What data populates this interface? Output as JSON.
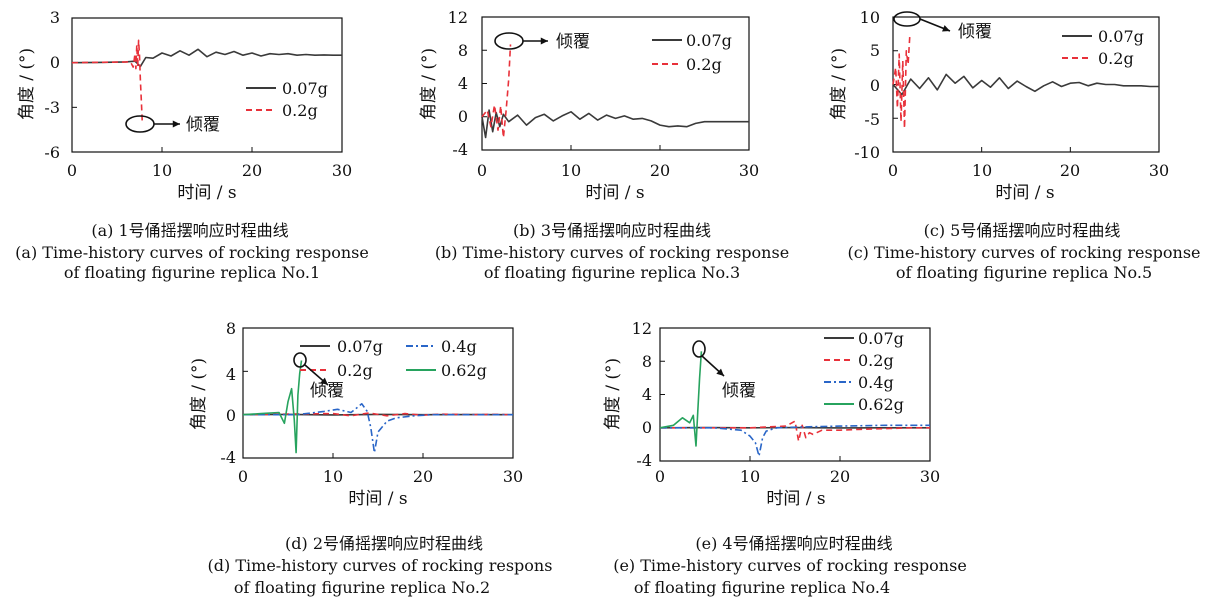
{
  "colors": {
    "0.07g": "#3a3a3a",
    "0.2g": "#e8313a",
    "0.4g": "#2a66c8",
    "0.62g": "#27a35e"
  },
  "chart_data": [
    {
      "type": "line",
      "panel": "a",
      "xlabel": "时间 / s",
      "ylabel": "角度 / (°)",
      "xlim": [
        0,
        30
      ],
      "ylim": [
        -6,
        3
      ],
      "xticks": [
        0,
        10,
        20,
        30
      ],
      "yticks": [
        -6,
        -3,
        0,
        3
      ],
      "caption_zh": "(a) 1号俑摇摆响应时程曲线",
      "caption_en_1": "(a) Time-history curves of rocking response",
      "caption_en_2": "of floating figurine replica No.1",
      "annotation": "倾覆",
      "series": [
        {
          "name": "0.07g",
          "style": "solid",
          "x": [
            0,
            3,
            6,
            7,
            7.6,
            8.2,
            9,
            10,
            11,
            12,
            13,
            14,
            15,
            16,
            17,
            18,
            19,
            20,
            21,
            22,
            23,
            24,
            25,
            26,
            27,
            28,
            29,
            30
          ],
          "y": [
            0,
            0.02,
            0.05,
            0.1,
            -0.25,
            0.35,
            0.3,
            0.65,
            0.45,
            0.8,
            0.5,
            0.9,
            0.4,
            0.7,
            0.55,
            0.75,
            0.5,
            0.65,
            0.45,
            0.6,
            0.55,
            0.6,
            0.5,
            0.55,
            0.5,
            0.52,
            0.5,
            0.5
          ]
        },
        {
          "name": "0.2g",
          "style": "dashed",
          "x": [
            0,
            6.5,
            6.8,
            7.0,
            7.1,
            7.2,
            7.3,
            7.4,
            7.5,
            7.6,
            7.7,
            7.8
          ],
          "y": [
            0,
            0.05,
            -0.3,
            0.6,
            -0.4,
            1.2,
            -0.3,
            1.5,
            0.5,
            -1.2,
            -2.5,
            -3.9
          ]
        }
      ]
    },
    {
      "type": "line",
      "panel": "b",
      "xlabel": "时间 / s",
      "ylabel": "角度 / (°)",
      "xlim": [
        0,
        30
      ],
      "ylim": [
        -4,
        12
      ],
      "xticks": [
        0,
        10,
        20,
        30
      ],
      "yticks": [
        -4,
        0,
        4,
        8,
        12
      ],
      "caption_zh": "(b) 3号俑摇摆响应时程曲线",
      "caption_en_1": "(b) Time-history curves of rocking response",
      "caption_en_2": "of floating figurine replica No.3",
      "annotation": "倾覆",
      "series": [
        {
          "name": "0.07g",
          "style": "solid",
          "x": [
            0,
            0.4,
            0.8,
            1.2,
            1.6,
            2.0,
            2.4,
            3,
            4,
            5,
            6,
            7,
            8,
            9,
            10,
            11,
            12,
            13,
            14,
            15,
            16,
            17,
            18,
            19,
            20,
            21,
            22,
            23,
            24,
            25,
            26,
            27,
            28,
            29,
            30
          ],
          "y": [
            0,
            -2.5,
            0.8,
            -1.8,
            0.5,
            -1.2,
            0.3,
            -0.6,
            0.2,
            -1.0,
            -0.1,
            0.3,
            -0.5,
            0.1,
            0.6,
            -0.3,
            0.4,
            -0.4,
            0.2,
            -0.2,
            0.1,
            -0.3,
            -0.2,
            -0.5,
            -1.0,
            -1.2,
            -1.1,
            -1.2,
            -0.8,
            -0.6,
            -0.6,
            -0.6,
            -0.6,
            -0.6,
            -0.6
          ]
        },
        {
          "name": "0.2g",
          "style": "dashed",
          "x": [
            0,
            0.6,
            1.0,
            1.4,
            1.8,
            2.1,
            2.4,
            2.7,
            3.0,
            3.2
          ],
          "y": [
            0,
            0.8,
            -1.2,
            1.4,
            -1.6,
            1.3,
            -2.5,
            0.6,
            4.5,
            8.7
          ]
        }
      ]
    },
    {
      "type": "line",
      "panel": "c",
      "xlabel": "时间 / s",
      "ylabel": "角度 / (°)",
      "xlim": [
        0,
        30
      ],
      "ylim": [
        -10,
        10
      ],
      "xticks": [
        0,
        10,
        20,
        30
      ],
      "yticks": [
        -10,
        -5,
        0,
        5,
        10
      ],
      "caption_zh": "(c) 5号俑摇摆响应时程曲线",
      "caption_en_1": "(c) Time-history curves of rocking response",
      "caption_en_2": "of floating figurine replica No.5",
      "annotation": "倾覆",
      "series": [
        {
          "name": "0.07g",
          "style": "solid",
          "x": [
            0,
            1,
            2,
            3,
            4,
            5,
            6,
            7,
            8,
            9,
            10,
            11,
            12,
            13,
            14,
            15,
            16,
            17,
            18,
            19,
            20,
            21,
            22,
            23,
            24,
            25,
            26,
            27,
            28,
            29,
            30
          ],
          "y": [
            0,
            -1.5,
            0.8,
            -0.6,
            1.0,
            -0.8,
            1.5,
            0.2,
            1.2,
            -0.5,
            0.6,
            -0.4,
            1.0,
            -0.6,
            0.5,
            -0.3,
            -1.0,
            -0.2,
            0.4,
            -0.3,
            0.2,
            0.3,
            -0.2,
            0.2,
            0,
            0,
            -0.2,
            -0.2,
            -0.2,
            -0.3,
            -0.3
          ]
        },
        {
          "name": "0.2g",
          "style": "dashed",
          "x": [
            0,
            0.3,
            0.5,
            0.7,
            0.9,
            1.1,
            1.3,
            1.5,
            1.7,
            1.9
          ],
          "y": [
            0,
            2.5,
            -3.5,
            4.5,
            -5.5,
            3.5,
            -6.5,
            5.0,
            3.0,
            7.2
          ]
        }
      ]
    },
    {
      "type": "line",
      "panel": "d",
      "xlabel": "时间 / s",
      "ylabel": "角度 / (°)",
      "xlim": [
        0,
        30
      ],
      "ylim": [
        -4,
        8
      ],
      "xticks": [
        0,
        10,
        20,
        30
      ],
      "yticks": [
        -4,
        0,
        4,
        8
      ],
      "caption_zh": "(d) 2号俑摇摆响应时程曲线",
      "caption_en_1": "(d) Time-history curves of rocking respons",
      "caption_en_2": "of floating figurine replica No.2",
      "annotation": "倾覆",
      "series": [
        {
          "name": "0.07g",
          "style": "solid",
          "x": [
            0,
            5,
            10,
            15,
            20,
            25,
            30
          ],
          "y": [
            0,
            0.02,
            -0.02,
            0.02,
            0,
            0.01,
            0
          ]
        },
        {
          "name": "0.2g",
          "style": "dashed",
          "x": [
            0,
            5,
            10,
            12,
            14,
            16,
            18,
            20,
            22,
            25,
            28,
            30
          ],
          "y": [
            0,
            0.05,
            0.1,
            -0.1,
            0.15,
            -0.1,
            0.1,
            -0.05,
            0.05,
            0,
            0.02,
            0
          ]
        },
        {
          "name": "0.4g",
          "style": "dashdot",
          "x": [
            0,
            6,
            9,
            10.5,
            12,
            13.2,
            13.8,
            14.2,
            14.6,
            15.0,
            16,
            17,
            19,
            21,
            24,
            27,
            30
          ],
          "y": [
            0,
            0,
            0.3,
            0.5,
            0.2,
            1.0,
            0.3,
            -1.2,
            -3.5,
            -1.6,
            -0.6,
            -0.3,
            -0.1,
            0,
            0,
            0,
            0
          ]
        },
        {
          "name": "0.62g",
          "style": "solid",
          "x": [
            0,
            2,
            4,
            4.6,
            5.0,
            5.4,
            5.7,
            5.9,
            6.1,
            6.3,
            6.5
          ],
          "y": [
            0,
            0.1,
            0.2,
            -0.8,
            1.2,
            2.4,
            -0.5,
            -3.5,
            1.8,
            3.8,
            5.0
          ]
        }
      ]
    },
    {
      "type": "line",
      "panel": "e",
      "xlabel": "时间 / s",
      "ylabel": "角度 / (°)",
      "xlim": [
        0,
        30
      ],
      "ylim": [
        -4,
        12
      ],
      "xticks": [
        0,
        10,
        20,
        30
      ],
      "yticks": [
        -4,
        0,
        4,
        8,
        12
      ],
      "caption_zh": "(e) 4号俑摇摆响应时程曲线",
      "caption_en_1": "(e) Time-history curves of rocking response",
      "caption_en_2": "of floating figurine replica No.4",
      "annotation": "倾覆",
      "series": [
        {
          "name": "0.07g",
          "style": "solid",
          "x": [
            0,
            5,
            10,
            15,
            20,
            25,
            30
          ],
          "y": [
            0,
            0.02,
            0,
            0.02,
            -0.02,
            0,
            0
          ]
        },
        {
          "name": "0.2g",
          "style": "dashed",
          "x": [
            0,
            10,
            14,
            15.0,
            15.4,
            15.8,
            16.2,
            16.6,
            17,
            18,
            20,
            22,
            25,
            28,
            30
          ],
          "y": [
            0,
            0,
            0.2,
            0.8,
            -1.6,
            0.3,
            -1.2,
            -0.6,
            -0.8,
            -0.3,
            -0.3,
            -0.2,
            -0.1,
            0,
            0
          ]
        },
        {
          "name": "0.4g",
          "style": "dashdot",
          "x": [
            0,
            6,
            9,
            10,
            10.6,
            11.0,
            11.4,
            11.8,
            12.4,
            13,
            16,
            20,
            25,
            30
          ],
          "y": [
            0,
            0,
            -0.3,
            -1.0,
            -1.8,
            -3.4,
            -1.2,
            -0.4,
            -0.2,
            0,
            0.1,
            0.2,
            0.3,
            0.3
          ]
        },
        {
          "name": "0.62g",
          "style": "solid",
          "x": [
            0,
            1.5,
            2.5,
            3.3,
            3.7,
            4.0,
            4.2,
            4.4,
            4.6
          ],
          "y": [
            0,
            0.3,
            1.2,
            0.6,
            1.5,
            -2.2,
            2.0,
            6.0,
            9.2
          ]
        }
      ]
    }
  ]
}
